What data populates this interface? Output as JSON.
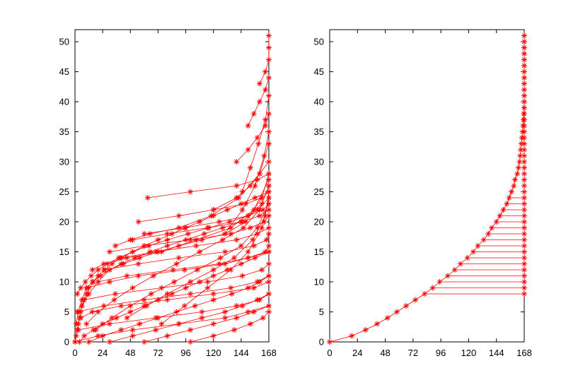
{
  "colors": {
    "series": "#ff0000",
    "axes": "#000000",
    "background": "#ffffff"
  },
  "chart_data": [
    {
      "type": "line",
      "marker": "asterisk",
      "xlim": [
        0,
        168
      ],
      "ylim": [
        0,
        52
      ],
      "xticks": [
        0,
        24,
        48,
        72,
        96,
        120,
        144,
        168
      ],
      "yticks": [
        0,
        5,
        10,
        15,
        20,
        25,
        30,
        35,
        40,
        45,
        50
      ],
      "grid": false,
      "legend": "none",
      "series": [
        {
          "x": [
            0,
            20,
            50,
            90,
            130,
            150,
            168
          ],
          "y": [
            0,
            1,
            2,
            3,
            4,
            5,
            6
          ]
        },
        {
          "x": [
            3,
            30,
            70,
            110,
            140,
            160,
            168
          ],
          "y": [
            2,
            3,
            4,
            5,
            6,
            7,
            8
          ]
        },
        {
          "x": [
            5,
            15,
            40,
            80,
            120,
            155,
            168
          ],
          "y": [
            4,
            5,
            6,
            7,
            8,
            9,
            10
          ]
        },
        {
          "x": [
            2,
            25,
            60,
            100,
            135,
            158,
            168
          ],
          "y": [
            5,
            6,
            7,
            8,
            9,
            10,
            11
          ]
        },
        {
          "x": [
            8,
            35,
            75,
            115,
            145,
            162,
            168
          ],
          "y": [
            7,
            8,
            9,
            10,
            11,
            12,
            13
          ]
        },
        {
          "x": [
            10,
            30,
            55,
            95,
            130,
            150,
            168
          ],
          "y": [
            9,
            10,
            11,
            12,
            13,
            14,
            15
          ]
        },
        {
          "x": [
            20,
            45,
            85,
            125,
            150,
            165,
            168
          ],
          "y": [
            10,
            11,
            12,
            13,
            14,
            15,
            16
          ]
        },
        {
          "x": [
            25,
            55,
            90,
            130,
            155,
            166,
            168
          ],
          "y": [
            12,
            13,
            14,
            15,
            16,
            17,
            18
          ]
        },
        {
          "x": [
            40,
            70,
            105,
            140,
            158,
            168
          ],
          "y": [
            14,
            15,
            16,
            17,
            18,
            19
          ]
        },
        {
          "x": [
            30,
            60,
            100,
            135,
            152,
            164,
            168
          ],
          "y": [
            15,
            16,
            17,
            18,
            19,
            20,
            21
          ]
        },
        {
          "x": [
            50,
            80,
            115,
            145,
            160,
            168
          ],
          "y": [
            17,
            18,
            19,
            20,
            21,
            22
          ]
        },
        {
          "x": [
            60,
            95,
            125,
            150,
            163,
            168
          ],
          "y": [
            18,
            19,
            20,
            21,
            22,
            23
          ]
        },
        {
          "x": [
            55,
            90,
            120,
            148,
            162,
            168
          ],
          "y": [
            20,
            21,
            22,
            23,
            24,
            25
          ]
        },
        {
          "x": [
            63,
            100,
            140,
            158,
            168
          ],
          "y": [
            24,
            25,
            26,
            27,
            28
          ]
        },
        {
          "x": [
            120,
            140,
            152,
            160,
            168
          ],
          "y": [
            22,
            24,
            26,
            28,
            30
          ]
        },
        {
          "x": [
            140,
            150,
            158,
            165,
            168
          ],
          "y": [
            30,
            32,
            34,
            36,
            38
          ]
        },
        {
          "x": [
            150,
            155,
            160,
            165,
            168
          ],
          "y": [
            36,
            38,
            40,
            42,
            44
          ]
        },
        {
          "x": [
            160,
            165,
            168,
            168,
            168
          ],
          "y": [
            43,
            45,
            47,
            49,
            51
          ]
        },
        {
          "x": [
            0,
            1,
            2,
            3,
            4,
            5,
            6,
            8,
            10,
            12,
            16,
            20,
            26,
            32,
            40,
            50,
            60,
            72,
            84,
            96,
            108,
            120,
            132,
            144,
            156,
            168
          ],
          "y": [
            0,
            1,
            2,
            3,
            4,
            5,
            6,
            7,
            8,
            9,
            10,
            11,
            12,
            13,
            14,
            15,
            16,
            17,
            18,
            19,
            20,
            21,
            22,
            23,
            24,
            25
          ]
        },
        {
          "x": [
            4,
            8,
            16,
            24,
            36,
            48,
            60,
            72,
            84,
            96,
            108,
            120,
            132,
            144,
            156,
            168
          ],
          "y": [
            0,
            1,
            2,
            3,
            4,
            5,
            6,
            7,
            8,
            9,
            10,
            11,
            12,
            13,
            14,
            15
          ]
        },
        {
          "x": [
            12,
            24,
            40,
            56,
            72,
            88,
            104,
            120,
            136,
            150,
            160,
            168
          ],
          "y": [
            0,
            1,
            2,
            3,
            4,
            5,
            6,
            7,
            8,
            9,
            10,
            11
          ]
        },
        {
          "x": [
            30,
            50,
            70,
            90,
            110,
            130,
            145,
            158,
            168
          ],
          "y": [
            0,
            1,
            2,
            3,
            4,
            5,
            6,
            7,
            8
          ]
        },
        {
          "x": [
            60,
            80,
            100,
            120,
            140,
            155,
            168
          ],
          "y": [
            0,
            1,
            2,
            3,
            4,
            5,
            6
          ]
        },
        {
          "x": [
            100,
            120,
            138,
            152,
            163,
            168
          ],
          "y": [
            0,
            1,
            2,
            3,
            4,
            5
          ]
        },
        {
          "x": [
            1,
            3,
            6,
            10,
            15,
            22,
            30,
            40,
            52,
            65,
            80,
            96,
            112,
            128,
            144,
            158,
            168
          ],
          "y": [
            3,
            5,
            7,
            9,
            10,
            11,
            12,
            13,
            14,
            15,
            16,
            17,
            18,
            19,
            20,
            22,
            24
          ]
        },
        {
          "x": [
            2,
            5,
            9,
            14,
            20,
            28,
            38,
            50,
            64,
            80,
            98,
            116,
            134,
            150,
            162,
            168
          ],
          "y": [
            8,
            9,
            10,
            11,
            12,
            13,
            14,
            15,
            16,
            17,
            18,
            19,
            20,
            21,
            23,
            26
          ]
        },
        {
          "x": [
            6,
            12,
            20,
            30,
            42,
            56,
            72,
            90,
            110,
            130,
            148,
            162,
            168
          ],
          "y": [
            6,
            8,
            10,
            12,
            13,
            14,
            15,
            16,
            17,
            18,
            20,
            24,
            28
          ]
        },
        {
          "x": [
            10,
            20,
            34,
            50,
            68,
            88,
            108,
            128,
            146,
            160,
            168
          ],
          "y": [
            3,
            5,
            7,
            9,
            11,
            13,
            15,
            17,
            19,
            22,
            26
          ]
        },
        {
          "x": [
            18,
            32,
            48,
            66,
            86,
            106,
            126,
            144,
            158,
            168
          ],
          "y": [
            2,
            4,
            6,
            8,
            10,
            12,
            14,
            16,
            19,
            23
          ]
        },
        {
          "x": [
            45,
            62,
            80,
            100,
            120,
            138,
            154,
            165,
            168
          ],
          "y": [
            4,
            6,
            8,
            10,
            12,
            14,
            17,
            21,
            25
          ]
        },
        {
          "x": [
            75,
            95,
            115,
            135,
            150,
            162,
            168
          ],
          "y": [
            3,
            6,
            9,
            12,
            15,
            19,
            24
          ]
        },
        {
          "x": [
            15,
            25,
            45,
            75,
            105,
            135,
            155,
            168
          ],
          "y": [
            12,
            13,
            14,
            15,
            17,
            19,
            22,
            27
          ]
        },
        {
          "x": [
            35,
            48,
            65,
            90,
            118,
            142,
            160,
            168
          ],
          "y": [
            16,
            17,
            18,
            19,
            21,
            24,
            28,
            33
          ]
        },
        {
          "x": [
            130,
            145,
            156,
            164,
            168
          ],
          "y": [
            18,
            22,
            26,
            31,
            35
          ]
        },
        {
          "x": [
            145,
            152,
            159,
            165,
            168
          ],
          "y": [
            25,
            29,
            33,
            37,
            41
          ]
        }
      ]
    },
    {
      "type": "line",
      "marker": "asterisk",
      "xlim": [
        0,
        168
      ],
      "ylim": [
        0,
        52
      ],
      "xticks": [
        0,
        24,
        48,
        72,
        96,
        120,
        144,
        168
      ],
      "yticks": [
        0,
        5,
        10,
        15,
        20,
        25,
        30,
        35,
        40,
        45,
        50
      ],
      "grid": false,
      "legend": "none",
      "series": [
        {
          "x": [
            0,
            19,
            31,
            41,
            50,
            58,
            66,
            74,
            82,
            89,
            95,
            102,
            108,
            113,
            119,
            124,
            128,
            133,
            137,
            140,
            144,
            147,
            150,
            153,
            155,
            157,
            159,
            160,
            162,
            163,
            164,
            164.5,
            165,
            165.5,
            166,
            166.5,
            167,
            167.3,
            167.6,
            167.9,
            168,
            168,
            168,
            168,
            168,
            168,
            168,
            168,
            168,
            168,
            168,
            168
          ],
          "y": [
            0,
            1,
            2,
            3,
            4,
            5,
            6,
            7,
            8,
            9,
            10,
            11,
            12,
            13,
            14,
            15,
            16,
            17,
            18,
            19,
            20,
            21,
            22,
            23,
            24,
            25,
            26,
            27,
            28,
            29,
            30,
            31,
            32,
            33,
            34,
            35,
            36,
            37,
            38,
            39,
            40,
            41,
            42,
            43,
            44,
            45,
            46,
            47,
            48,
            49,
            50,
            51
          ]
        },
        {
          "x": [
            168,
            168,
            168,
            168,
            168,
            168,
            168,
            168,
            168,
            168,
            168,
            168,
            168,
            168,
            168,
            168,
            168,
            168,
            168,
            168,
            168,
            168,
            168,
            168,
            168,
            168,
            168,
            168,
            168,
            168,
            168,
            168,
            168,
            168,
            168,
            168,
            168,
            168,
            168,
            168,
            168,
            168,
            168,
            168
          ],
          "y": [
            8,
            9,
            10,
            11,
            12,
            13,
            14,
            15,
            16,
            17,
            18,
            19,
            20,
            21,
            22,
            23,
            24,
            25,
            26,
            27,
            28,
            29,
            30,
            31,
            32,
            33,
            34,
            35,
            36,
            37,
            38,
            39,
            40,
            41,
            42,
            43,
            44,
            45,
            46,
            47,
            48,
            49,
            50,
            51
          ]
        }
      ],
      "connectors": {
        "from_series": 0,
        "to_series": 1,
        "y": [
          8,
          9,
          10,
          11,
          12,
          13,
          14,
          15,
          16,
          17,
          18,
          19,
          20,
          21,
          22,
          23,
          24
        ]
      }
    }
  ]
}
